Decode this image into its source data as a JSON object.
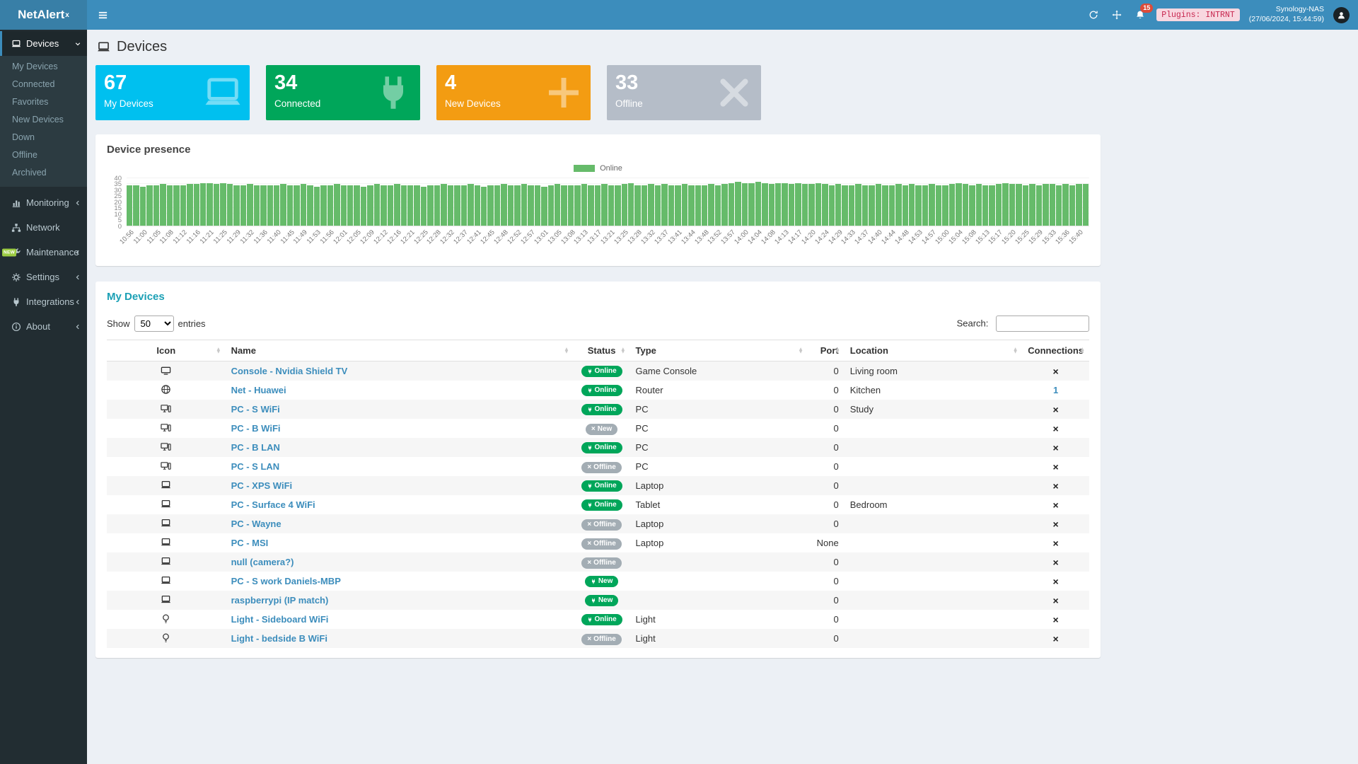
{
  "navbar": {
    "brand_main": "NetAlert",
    "brand_sup": "x",
    "notification_count": "15",
    "plugins_label": "Plugins: INTRNT",
    "host": "Synology-NAS",
    "timestamp": "(27/06/2024, 15:44:59)"
  },
  "sidebar": {
    "items": [
      {
        "label": "Devices",
        "icon": "laptop",
        "active": true,
        "expanded": true,
        "children": [
          "My Devices",
          "Connected",
          "Favorites",
          "New Devices",
          "Down",
          "Offline",
          "Archived"
        ]
      },
      {
        "label": "Monitoring",
        "icon": "chart",
        "chevron": "left"
      },
      {
        "label": "Network",
        "icon": "network"
      },
      {
        "label": "Maintenance",
        "icon": "wrench",
        "chevron": "left",
        "badge": "NEW"
      },
      {
        "label": "Settings",
        "icon": "gear",
        "chevron": "left"
      },
      {
        "label": "Integrations",
        "icon": "plug",
        "chevron": "left"
      },
      {
        "label": "About",
        "icon": "info",
        "chevron": "left"
      }
    ]
  },
  "page": {
    "title": "Devices"
  },
  "summary_boxes": [
    {
      "value": "67",
      "label": "My Devices",
      "color": "#00c0ef",
      "icon": "laptop"
    },
    {
      "value": "34",
      "label": "Connected",
      "color": "#00a65a",
      "icon": "plug"
    },
    {
      "value": "4",
      "label": "New Devices",
      "color": "#f39c12",
      "icon": "plus"
    },
    {
      "value": "33",
      "label": "Offline",
      "color": "#b5bdc8",
      "icon": "x"
    }
  ],
  "presence_panel": {
    "title": "Device presence"
  },
  "chart_data": {
    "type": "bar",
    "title": "Device presence",
    "series_label": "Online",
    "color": "#66bb6a",
    "ylim": [
      0,
      40
    ],
    "yticks": [
      0,
      5,
      10,
      15,
      20,
      25,
      30,
      35,
      40
    ],
    "label_every_n_bars": 2,
    "x_labels": [
      "10:56",
      "11:00",
      "11:05",
      "11:08",
      "11:12",
      "11:16",
      "11:21",
      "11:25",
      "11:29",
      "11:32",
      "11:36",
      "11:40",
      "11:45",
      "11:49",
      "11:53",
      "11:56",
      "12:01",
      "12:05",
      "12:09",
      "12:12",
      "12:16",
      "12:21",
      "12:25",
      "12:28",
      "12:32",
      "12:37",
      "12:41",
      "12:45",
      "12:48",
      "12:52",
      "12:57",
      "13:01",
      "13:05",
      "13:08",
      "13:13",
      "13:17",
      "13:21",
      "13:25",
      "13:28",
      "13:32",
      "13:37",
      "13:41",
      "13:44",
      "13:48",
      "13:52",
      "13:57",
      "14:00",
      "14:04",
      "14:08",
      "14:13",
      "14:17",
      "14:20",
      "14:24",
      "14:29",
      "14:33",
      "14:37",
      "14:40",
      "14:44",
      "14:48",
      "14:53",
      "14:57",
      "15:00",
      "15:04",
      "15:08",
      "15:13",
      "15:17",
      "15:20",
      "15:25",
      "15:29",
      "15:33",
      "15:36",
      "15:40"
    ],
    "values": [
      34,
      34,
      33,
      34,
      34,
      35,
      34,
      34,
      34,
      35,
      35,
      36,
      36,
      35,
      36,
      35,
      34,
      34,
      35,
      34,
      34,
      34,
      34,
      35,
      34,
      34,
      35,
      34,
      33,
      34,
      34,
      35,
      34,
      34,
      34,
      33,
      34,
      35,
      34,
      34,
      35,
      34,
      34,
      34,
      33,
      34,
      34,
      35,
      34,
      34,
      34,
      35,
      34,
      33,
      34,
      34,
      35,
      34,
      34,
      35,
      34,
      34,
      33,
      34,
      35,
      34,
      34,
      34,
      35,
      34,
      34,
      35,
      34,
      34,
      35,
      36,
      34,
      34,
      35,
      34,
      35,
      34,
      34,
      35,
      34,
      34,
      34,
      35,
      34,
      35,
      36,
      37,
      36,
      36,
      37,
      36,
      35,
      36,
      36,
      35,
      36,
      35,
      35,
      36,
      35,
      34,
      35,
      34,
      34,
      35,
      34,
      34,
      35,
      34,
      34,
      35,
      34,
      35,
      34,
      34,
      35,
      34,
      34,
      35,
      36,
      35,
      34,
      35,
      34,
      34,
      35,
      36,
      35,
      35,
      34,
      35,
      34,
      35,
      35,
      34,
      35,
      34,
      35,
      35
    ]
  },
  "devices_panel": {
    "title": "My Devices",
    "show_label": "Show",
    "page_size": "50",
    "entries_label": "entries",
    "search_label": "Search:",
    "search_value": "",
    "columns": [
      "Icon",
      "Name",
      "Status",
      "Type",
      "Port",
      "Location",
      "Connections"
    ],
    "rows": [
      {
        "icon": "tv",
        "name": "Console - Nvidia Shield TV",
        "status": "Online",
        "variant": "green",
        "status_icon": "plug",
        "type": "Game Console",
        "port": "0",
        "location": "Living room",
        "connections": "x"
      },
      {
        "icon": "globe",
        "name": "Net - Huawei",
        "status": "Online",
        "variant": "green",
        "status_icon": "plug",
        "type": "Router",
        "port": "0",
        "location": "Kitchen",
        "connections": "1"
      },
      {
        "icon": "desktop",
        "name": "PC - S WiFi",
        "status": "Online",
        "variant": "green",
        "status_icon": "plug",
        "type": "PC",
        "port": "0",
        "location": "Study",
        "connections": "x"
      },
      {
        "icon": "desktop",
        "name": "PC - B WiFi",
        "status": "New",
        "variant": "gray",
        "status_icon": "x",
        "type": "PC",
        "port": "0",
        "location": "",
        "connections": "x"
      },
      {
        "icon": "desktop",
        "name": "PC - B LAN",
        "status": "Online",
        "variant": "green",
        "status_icon": "plug",
        "type": "PC",
        "port": "0",
        "location": "",
        "connections": "x"
      },
      {
        "icon": "desktop",
        "name": "PC - S LAN",
        "status": "Offline",
        "variant": "gray",
        "status_icon": "x",
        "type": "PC",
        "port": "0",
        "location": "",
        "connections": "x"
      },
      {
        "icon": "laptop",
        "name": "PC - XPS WiFi",
        "status": "Online",
        "variant": "green",
        "status_icon": "plug",
        "type": "Laptop",
        "port": "0",
        "location": "",
        "connections": "x"
      },
      {
        "icon": "laptop",
        "name": "PC - Surface 4 WiFi",
        "status": "Online",
        "variant": "green",
        "status_icon": "plug",
        "type": "Tablet",
        "port": "0",
        "location": "Bedroom",
        "connections": "x"
      },
      {
        "icon": "laptop",
        "name": "PC - Wayne",
        "status": "Offline",
        "variant": "gray",
        "status_icon": "x",
        "type": "Laptop",
        "port": "0",
        "location": "",
        "connections": "x"
      },
      {
        "icon": "laptop",
        "name": "PC - MSI",
        "status": "Offline",
        "variant": "gray",
        "status_icon": "x",
        "type": "Laptop",
        "port": "None",
        "location": "",
        "connections": "x"
      },
      {
        "icon": "laptop",
        "name": "null (camera?)",
        "status": "Offline",
        "variant": "gray",
        "status_icon": "x",
        "type": "",
        "port": "0",
        "location": "",
        "connections": "x"
      },
      {
        "icon": "laptop",
        "name": "PC - S work Daniels-MBP",
        "status": "New",
        "variant": "green",
        "status_icon": "plug",
        "type": "",
        "port": "0",
        "location": "",
        "connections": "x"
      },
      {
        "icon": "laptop",
        "name": "raspberrypi (IP match)",
        "status": "New",
        "variant": "green",
        "status_icon": "plug",
        "type": "",
        "port": "0",
        "location": "",
        "connections": "x"
      },
      {
        "icon": "bulb",
        "name": "Light - Sideboard WiFi",
        "status": "Online",
        "variant": "green",
        "status_icon": "plug",
        "type": "Light",
        "port": "0",
        "location": "",
        "connections": "x"
      },
      {
        "icon": "bulb",
        "name": "Light - bedside B WiFi",
        "status": "Offline",
        "variant": "gray",
        "status_icon": "x",
        "type": "Light",
        "port": "0",
        "location": "",
        "connections": "x"
      }
    ]
  },
  "colors": {
    "navbar": "#3c8dbc",
    "sidebar": "#222d32",
    "badge_green": "#00a65a",
    "badge_gray": "#a3adb4",
    "link": "#3c8dbc"
  }
}
